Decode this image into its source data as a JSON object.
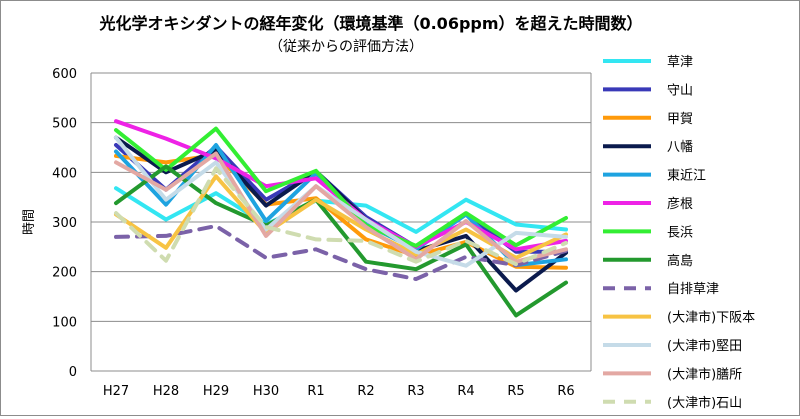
{
  "chart_data": {
    "type": "line",
    "title": "光化学オキシダントの経年変化（環境基準（0.06ppm）を超えた時間数）",
    "subtitle": "（従来からの評価方法）",
    "xlabel": "",
    "ylabel": "時間",
    "ylim": [
      0,
      600
    ],
    "yticks": [
      0,
      100,
      200,
      300,
      400,
      500,
      600
    ],
    "grid": true,
    "legend_position": "right",
    "categories": [
      "H27",
      "H28",
      "H29",
      "H30",
      "R1",
      "R2",
      "R3",
      "R4",
      "R5",
      "R6"
    ],
    "series": [
      {
        "name": "草津",
        "color": "#33e6f2",
        "dash": false,
        "values": [
          368,
          305,
          358,
          295,
          343,
          333,
          280,
          345,
          295,
          285
        ]
      },
      {
        "name": "守山",
        "color": "#3939b8",
        "dash": false,
        "values": [
          455,
          365,
          452,
          345,
          402,
          310,
          250,
          316,
          240,
          240
        ]
      },
      {
        "name": "甲賀",
        "color": "#ff9a0a",
        "dash": false,
        "values": [
          433,
          420,
          435,
          335,
          348,
          265,
          232,
          260,
          210,
          208
        ]
      },
      {
        "name": "八幡",
        "color": "#0a1a4d",
        "dash": false,
        "values": [
          470,
          400,
          445,
          333,
          402,
          305,
          242,
          272,
          162,
          238
        ]
      },
      {
        "name": "東近江",
        "color": "#1ea3e0",
        "dash": false,
        "values": [
          442,
          335,
          455,
          302,
          398,
          295,
          245,
          315,
          213,
          225
        ]
      },
      {
        "name": "彦根",
        "color": "#ee22e6",
        "dash": false,
        "values": [
          503,
          468,
          428,
          372,
          388,
          305,
          250,
          300,
          245,
          262
        ]
      },
      {
        "name": "長浜",
        "color": "#33ee33",
        "dash": false,
        "values": [
          485,
          405,
          488,
          362,
          403,
          293,
          252,
          318,
          253,
          308
        ]
      },
      {
        "name": "高島",
        "color": "#23992e",
        "dash": false,
        "values": [
          338,
          412,
          338,
          293,
          345,
          220,
          205,
          255,
          112,
          178
        ]
      },
      {
        "name": "自排草津",
        "color": "#7b62a8",
        "dash": true,
        "values": [
          270,
          272,
          292,
          228,
          245,
          205,
          185,
          230,
          213,
          242
        ]
      },
      {
        "name": "(大津市)下阪本",
        "color": "#f7c343",
        "dash": false,
        "values": [
          315,
          248,
          392,
          278,
          345,
          285,
          235,
          285,
          228,
          275
        ]
      },
      {
        "name": "(大津市)堅田",
        "color": "#c5dbe8",
        "dash": false,
        "values": [
          470,
          345,
          420,
          285,
          372,
          305,
          240,
          212,
          278,
          270
        ]
      },
      {
        "name": "(大津市)膳所",
        "color": "#e3a8a3",
        "dash": false,
        "values": [
          420,
          365,
          438,
          272,
          372,
          290,
          225,
          302,
          220,
          245
        ]
      },
      {
        "name": "(大津市)石山",
        "color": "#cfdcb0",
        "dash": true,
        "values": [
          318,
          222,
          408,
          290,
          265,
          262,
          220,
          262,
          215,
          258
        ]
      }
    ]
  }
}
